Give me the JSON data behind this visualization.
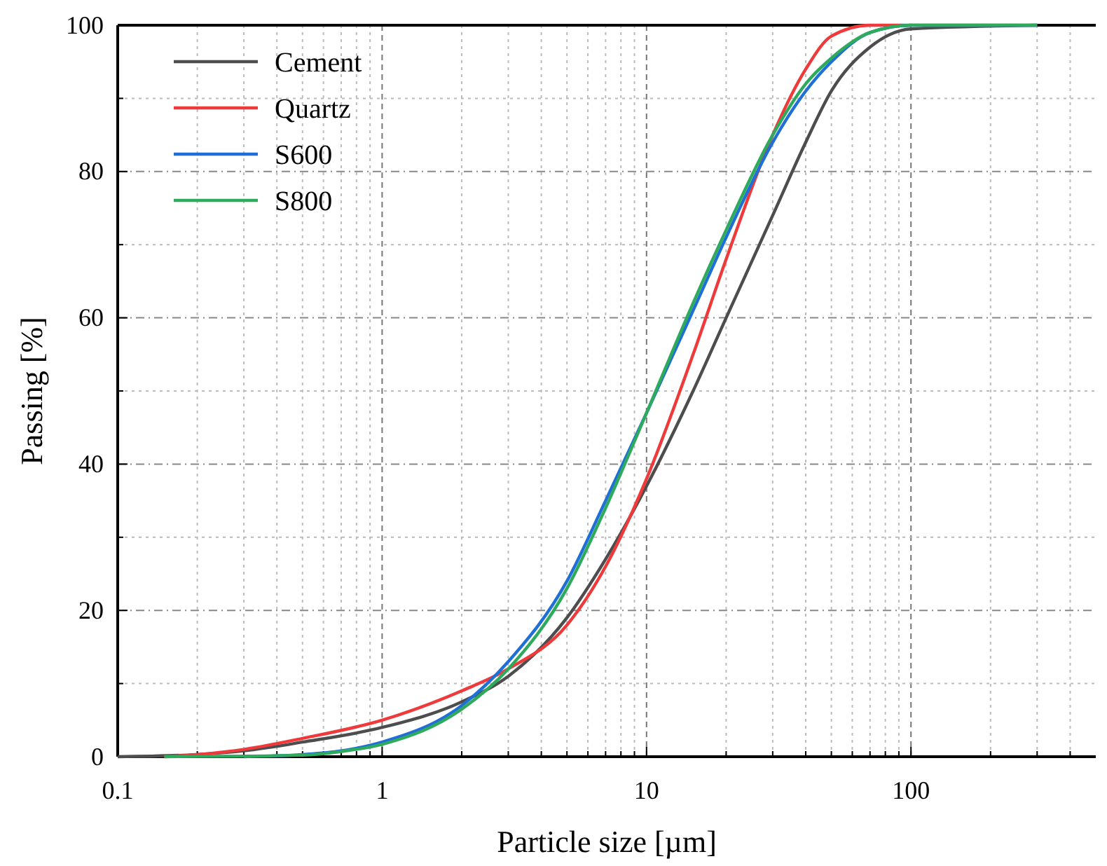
{
  "chart_data": {
    "type": "line",
    "xlabel": "Particle size [µm]",
    "ylabel": "Passing [%]",
    "log": "x",
    "grid": true,
    "legend": "top left",
    "line_style": "solid",
    "marker": "none",
    "xlim": [
      0.1,
      500
    ],
    "xticks": [
      0.1,
      1,
      10,
      100
    ],
    "ylim": [
      0,
      100
    ],
    "yticks": [
      0,
      20,
      40,
      60,
      80,
      100
    ],
    "series": [
      {
        "name": "Cement",
        "color": "#4d4d4d",
        "x": [
          0.1,
          0.2,
          0.3,
          0.5,
          1,
          2,
          3,
          5,
          7,
          10,
          15,
          20,
          30,
          40,
          50,
          70,
          100,
          300
        ],
        "values": [
          0,
          0.3,
          0.8,
          2,
          4,
          7.5,
          11,
          19,
          27,
          37,
          50,
          60,
          74,
          84,
          91,
          97,
          99.5,
          100
        ]
      },
      {
        "name": "Quartz",
        "color": "#ee3a3a",
        "x": [
          0.15,
          0.2,
          0.3,
          0.5,
          1,
          2,
          3,
          5,
          7,
          10,
          15,
          20,
          30,
          40,
          50,
          70,
          100
        ],
        "values": [
          0,
          0.3,
          1,
          2.5,
          5,
          9,
          12,
          18,
          26,
          38,
          55,
          68,
          85,
          94,
          98.5,
          100,
          100
        ]
      },
      {
        "name": "S600",
        "color": "#1f6fd6",
        "x": [
          0.3,
          0.5,
          0.7,
          1,
          2,
          3,
          5,
          7,
          10,
          15,
          20,
          30,
          40,
          50,
          70,
          100,
          300
        ],
        "values": [
          0,
          0.3,
          0.8,
          2,
          7,
          13,
          24,
          35,
          47,
          61,
          71,
          84,
          91,
          95,
          99,
          100,
          100
        ]
      },
      {
        "name": "S800",
        "color": "#2eaa5c",
        "x": [
          0.15,
          0.5,
          0.7,
          1,
          2,
          3,
          5,
          7,
          10,
          15,
          20,
          30,
          40,
          50,
          70,
          100,
          300
        ],
        "values": [
          0,
          0.2,
          0.7,
          1.7,
          6.5,
          12,
          23,
          34,
          47,
          62,
          72,
          85,
          92,
          95.5,
          99,
          100,
          100
        ]
      }
    ]
  }
}
